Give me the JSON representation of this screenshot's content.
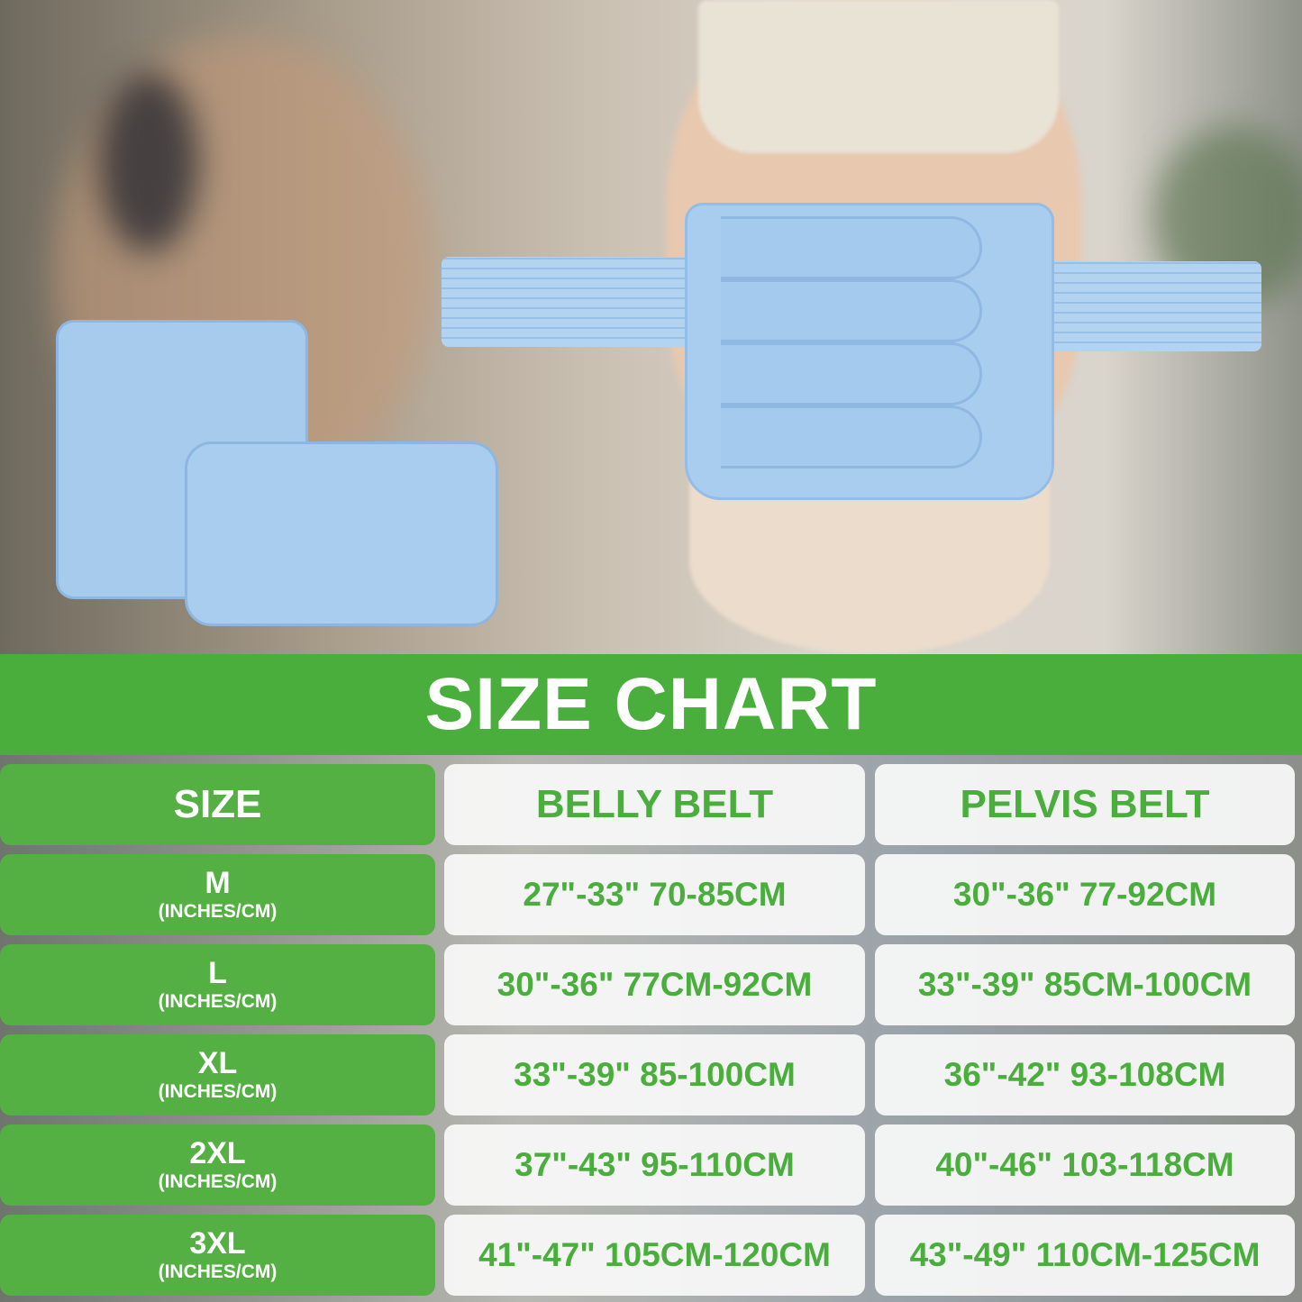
{
  "banner": {
    "title": "SIZE CHART"
  },
  "colors": {
    "green": "#4aae3c",
    "belt_blue": "#a9cdee"
  },
  "table": {
    "headers": [
      "SIZE",
      "BELLY BELT",
      "PELVIS BELT"
    ],
    "rows": [
      {
        "size": "M",
        "unit": "(INCHES/CM)",
        "belly": "27\"-33\" 70-85CM",
        "pelvis": "30\"-36\" 77-92CM"
      },
      {
        "size": "L",
        "unit": "(INCHES/CM)",
        "belly": "30\"-36\" 77CM-92CM",
        "pelvis": "33\"-39\" 85CM-100CM"
      },
      {
        "size": "XL",
        "unit": "(INCHES/CM)",
        "belly": "33\"-39\" 85-100CM",
        "pelvis": "36\"-42\" 93-108CM"
      },
      {
        "size": "2XL",
        "unit": "(INCHES/CM)",
        "belly": "37\"-43\" 95-110CM",
        "pelvis": "40\"-46\" 103-118CM"
      },
      {
        "size": "3XL",
        "unit": "(INCHES/CM)",
        "belly": "41\"-47\" 105CM-120CM",
        "pelvis": "43\"-49\" 110CM-125CM"
      }
    ]
  }
}
